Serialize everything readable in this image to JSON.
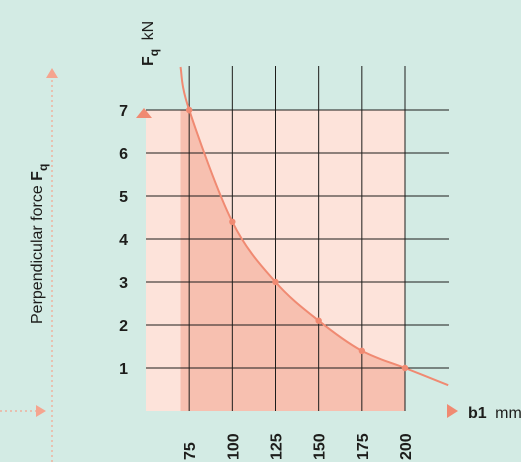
{
  "chart_data": {
    "type": "line",
    "x_label_bold": "b1",
    "x_unit": "mm",
    "y_label_bold": "F",
    "y_label_sub": "q",
    "y_unit": "kN",
    "side_label_text": "Perpendicular force ",
    "side_label_bold": "F",
    "side_label_sub": "q",
    "x_ticks": [
      75,
      100,
      125,
      150,
      175,
      200
    ],
    "y_ticks": [
      1,
      2,
      3,
      4,
      5,
      6,
      7
    ],
    "xlim": [
      50,
      200
    ],
    "ylim": [
      0,
      7
    ],
    "grid": true,
    "shaded_region": {
      "x": [
        50,
        200
      ],
      "y": [
        0,
        7
      ]
    },
    "series": [
      {
        "x": [
          70,
          75,
          100,
          125,
          150,
          175,
          200,
          225
        ],
        "y": [
          8.0,
          7.0,
          4.4,
          3.0,
          2.1,
          1.4,
          1.0,
          0.6
        ],
        "markers": [
          75,
          100,
          125,
          150,
          175,
          200
        ]
      }
    ],
    "colors": {
      "background": "#d3ebe4",
      "region_light": "#fde3da",
      "region_dark": "#f7c0b0",
      "curve": "#f08a72",
      "side_arrows": "#f5a58f",
      "axis_arrow": "#f08a72",
      "grid": "#1d1d1b"
    }
  }
}
